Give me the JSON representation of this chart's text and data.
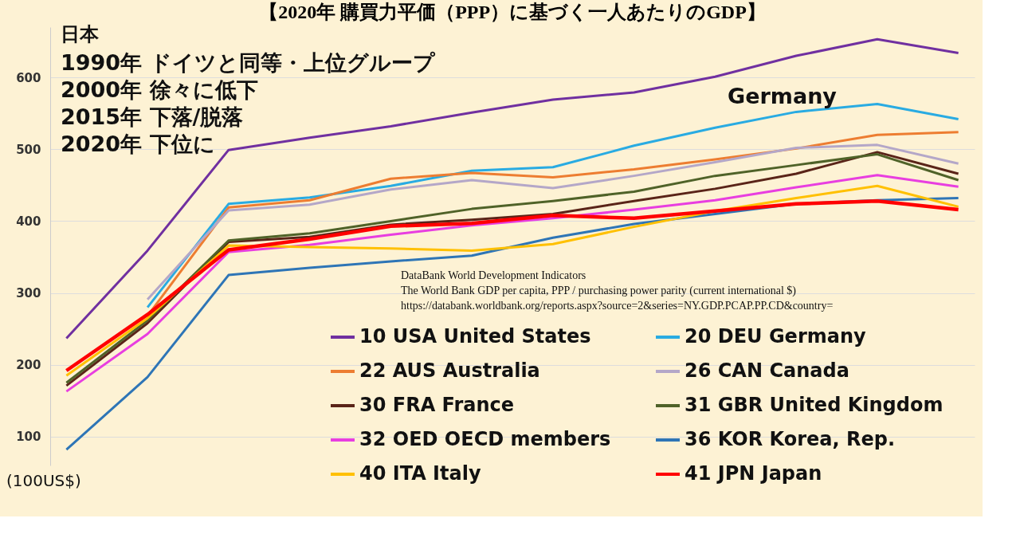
{
  "chart_data": {
    "type": "line",
    "title": "【2020年 購買力平価（PPP）に基づく一人あたりのGDP】",
    "ylabel": "(100US$)",
    "categories": [
      null,
      null,
      null,
      null,
      null,
      null,
      null,
      null,
      null,
      null,
      null,
      null
    ],
    "ylim": [
      60,
      670
    ],
    "yticks": [
      100,
      200,
      300,
      400,
      500,
      600
    ],
    "grid": "y",
    "legend": "bottom right",
    "line_style": "solid",
    "annotations": [
      "日本",
      "1990年 ドイツと同等・上位グループ",
      "2000年 徐々に低下",
      "2015年 下落/脱落",
      "2020年 下位に",
      "Germany",
      "DataBank World Development Indicators",
      "The World Bank    GDP per capita, PPP / purchasing power parity (current international $)",
      "https://databank.worldbank.org/reports.aspx?source=2&series=NY.GDP.PCAP.PP.CD&country="
    ],
    "series": [
      {
        "name": "10 USA United States",
        "color": "#7030a0",
        "values": [
          237,
          359,
          499,
          516,
          532,
          551,
          569,
          579,
          601,
          630,
          653,
          634
        ]
      },
      {
        "name": "20 DEU Germany",
        "color": "#29abe2",
        "values": [
          null,
          280,
          424,
          433,
          449,
          470,
          475,
          505,
          530,
          552,
          563,
          542
        ]
      },
      {
        "name": "22 AUS Australia",
        "color": "#ed7d31",
        "values": [
          null,
          268,
          419,
          429,
          459,
          467,
          461,
          472,
          486,
          501,
          520,
          524
        ]
      },
      {
        "name": "26 CAN Canada",
        "color": "#b4a7c8",
        "values": [
          null,
          291,
          415,
          423,
          444,
          457,
          446,
          463,
          482,
          502,
          506,
          480
        ]
      },
      {
        "name": "30 FRA France",
        "color": "#5a2418",
        "values": [
          171,
          258,
          371,
          378,
          395,
          402,
          410,
          428,
          445,
          466,
          496,
          466
        ]
      },
      {
        "name": "31 GBR United Kingdom",
        "color": "#4f6228",
        "values": [
          175,
          262,
          373,
          383,
          400,
          417,
          428,
          441,
          463,
          478,
          493,
          457
        ]
      },
      {
        "name": "32 OED OECD members",
        "color": "#e83ee0",
        "values": [
          163,
          243,
          357,
          367,
          381,
          394,
          404,
          416,
          429,
          447,
          464,
          448
        ]
      },
      {
        "name": "36 KOR Korea, Rep.",
        "color": "#2e75b6",
        "values": [
          82,
          183,
          325,
          335,
          344,
          352,
          377,
          396,
          410,
          424,
          429,
          432
        ]
      },
      {
        "name": "40 ITA Italy",
        "color": "#ffc000",
        "values": [
          185,
          265,
          366,
          364,
          362,
          359,
          368,
          392,
          414,
          432,
          449,
          420
        ]
      },
      {
        "name": "41 JPN Japan",
        "color": "#ff0000",
        "values": [
          192,
          270,
          360,
          375,
          393,
          397,
          408,
          404,
          414,
          424,
          428,
          416
        ]
      }
    ]
  }
}
